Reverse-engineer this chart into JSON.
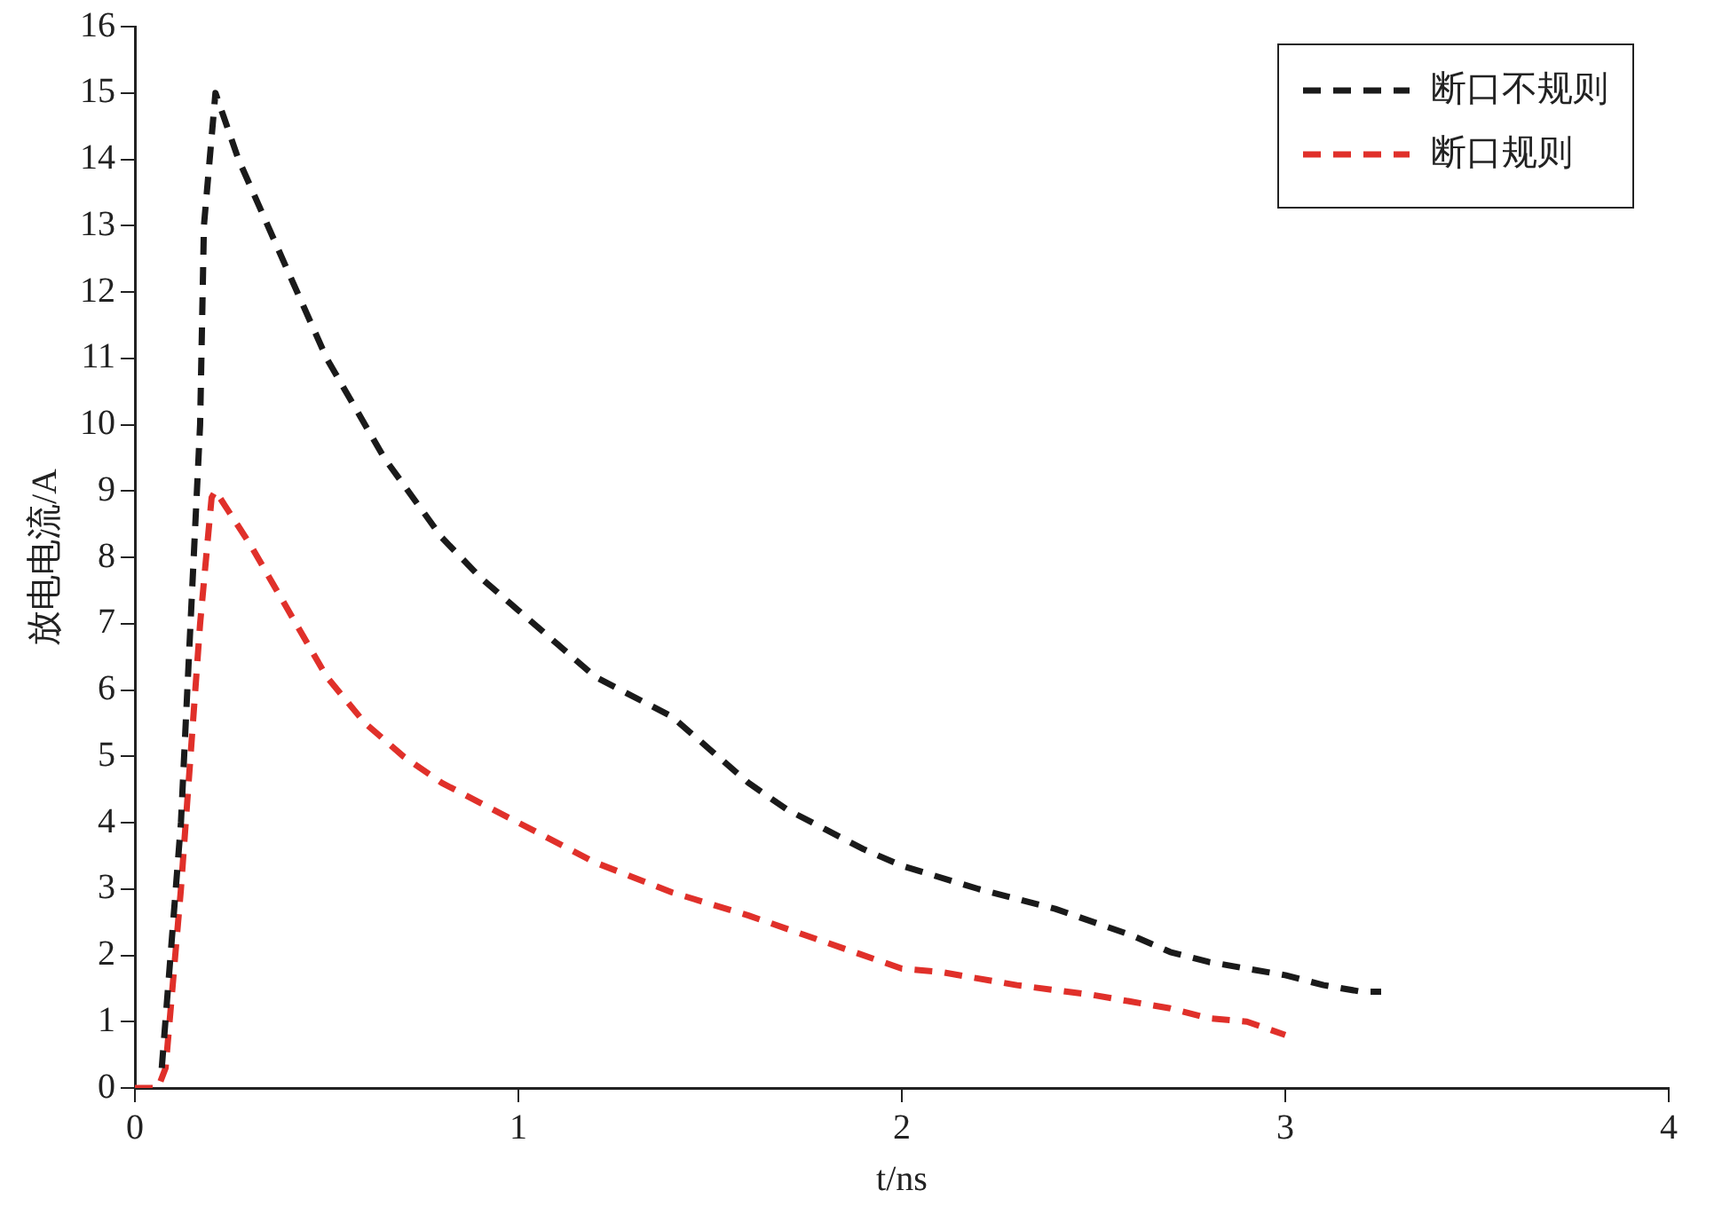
{
  "chart_data": {
    "type": "line",
    "xlabel": "t/ns",
    "ylabel": "放电电流/A",
    "xlim": [
      0,
      4
    ],
    "xticks": [
      0,
      1,
      2,
      3,
      4
    ],
    "ylim": [
      0,
      16
    ],
    "yticks": [
      0,
      1,
      2,
      3,
      4,
      5,
      6,
      7,
      8,
      9,
      10,
      11,
      12,
      13,
      14,
      15,
      16
    ],
    "grid": false,
    "legend": "top right",
    "line_style": "dashed",
    "marker": "none",
    "series": [
      {
        "name": "断口不规则",
        "color": "#1a1a1a",
        "x": [
          0.07,
          0.12,
          0.17,
          0.18,
          0.21,
          0.27,
          0.4,
          0.5,
          0.65,
          0.8,
          0.9,
          1.0,
          1.1,
          1.2,
          1.4,
          1.5,
          1.6,
          1.7,
          1.8,
          1.9,
          2.0,
          2.2,
          2.4,
          2.6,
          2.7,
          2.8,
          3.0,
          3.1,
          3.2,
          3.25
        ],
        "values": [
          0.3,
          4,
          10,
          13,
          15,
          14,
          12.3,
          11,
          9.5,
          8.3,
          7.7,
          7.2,
          6.7,
          6.2,
          5.6,
          5.1,
          4.6,
          4.2,
          3.9,
          3.6,
          3.35,
          3.0,
          2.7,
          2.3,
          2.05,
          1.9,
          1.7,
          1.55,
          1.45,
          1.45
        ]
      },
      {
        "name": "断口规则",
        "color": "#e0302a",
        "x": [
          0,
          0.06,
          0.08,
          0.12,
          0.17,
          0.2,
          0.21,
          0.3,
          0.4,
          0.5,
          0.6,
          0.7,
          0.8,
          0.9,
          1.0,
          1.2,
          1.4,
          1.6,
          1.8,
          2.0,
          2.1,
          2.3,
          2.5,
          2.7,
          2.8,
          2.9,
          3.0
        ],
        "values": [
          0,
          0,
          0.3,
          3,
          7,
          8.9,
          9.0,
          8.2,
          7.2,
          6.2,
          5.5,
          5.0,
          4.6,
          4.3,
          4.0,
          3.4,
          2.95,
          2.6,
          2.2,
          1.8,
          1.75,
          1.55,
          1.4,
          1.2,
          1.05,
          1.0,
          0.8
        ]
      }
    ]
  }
}
